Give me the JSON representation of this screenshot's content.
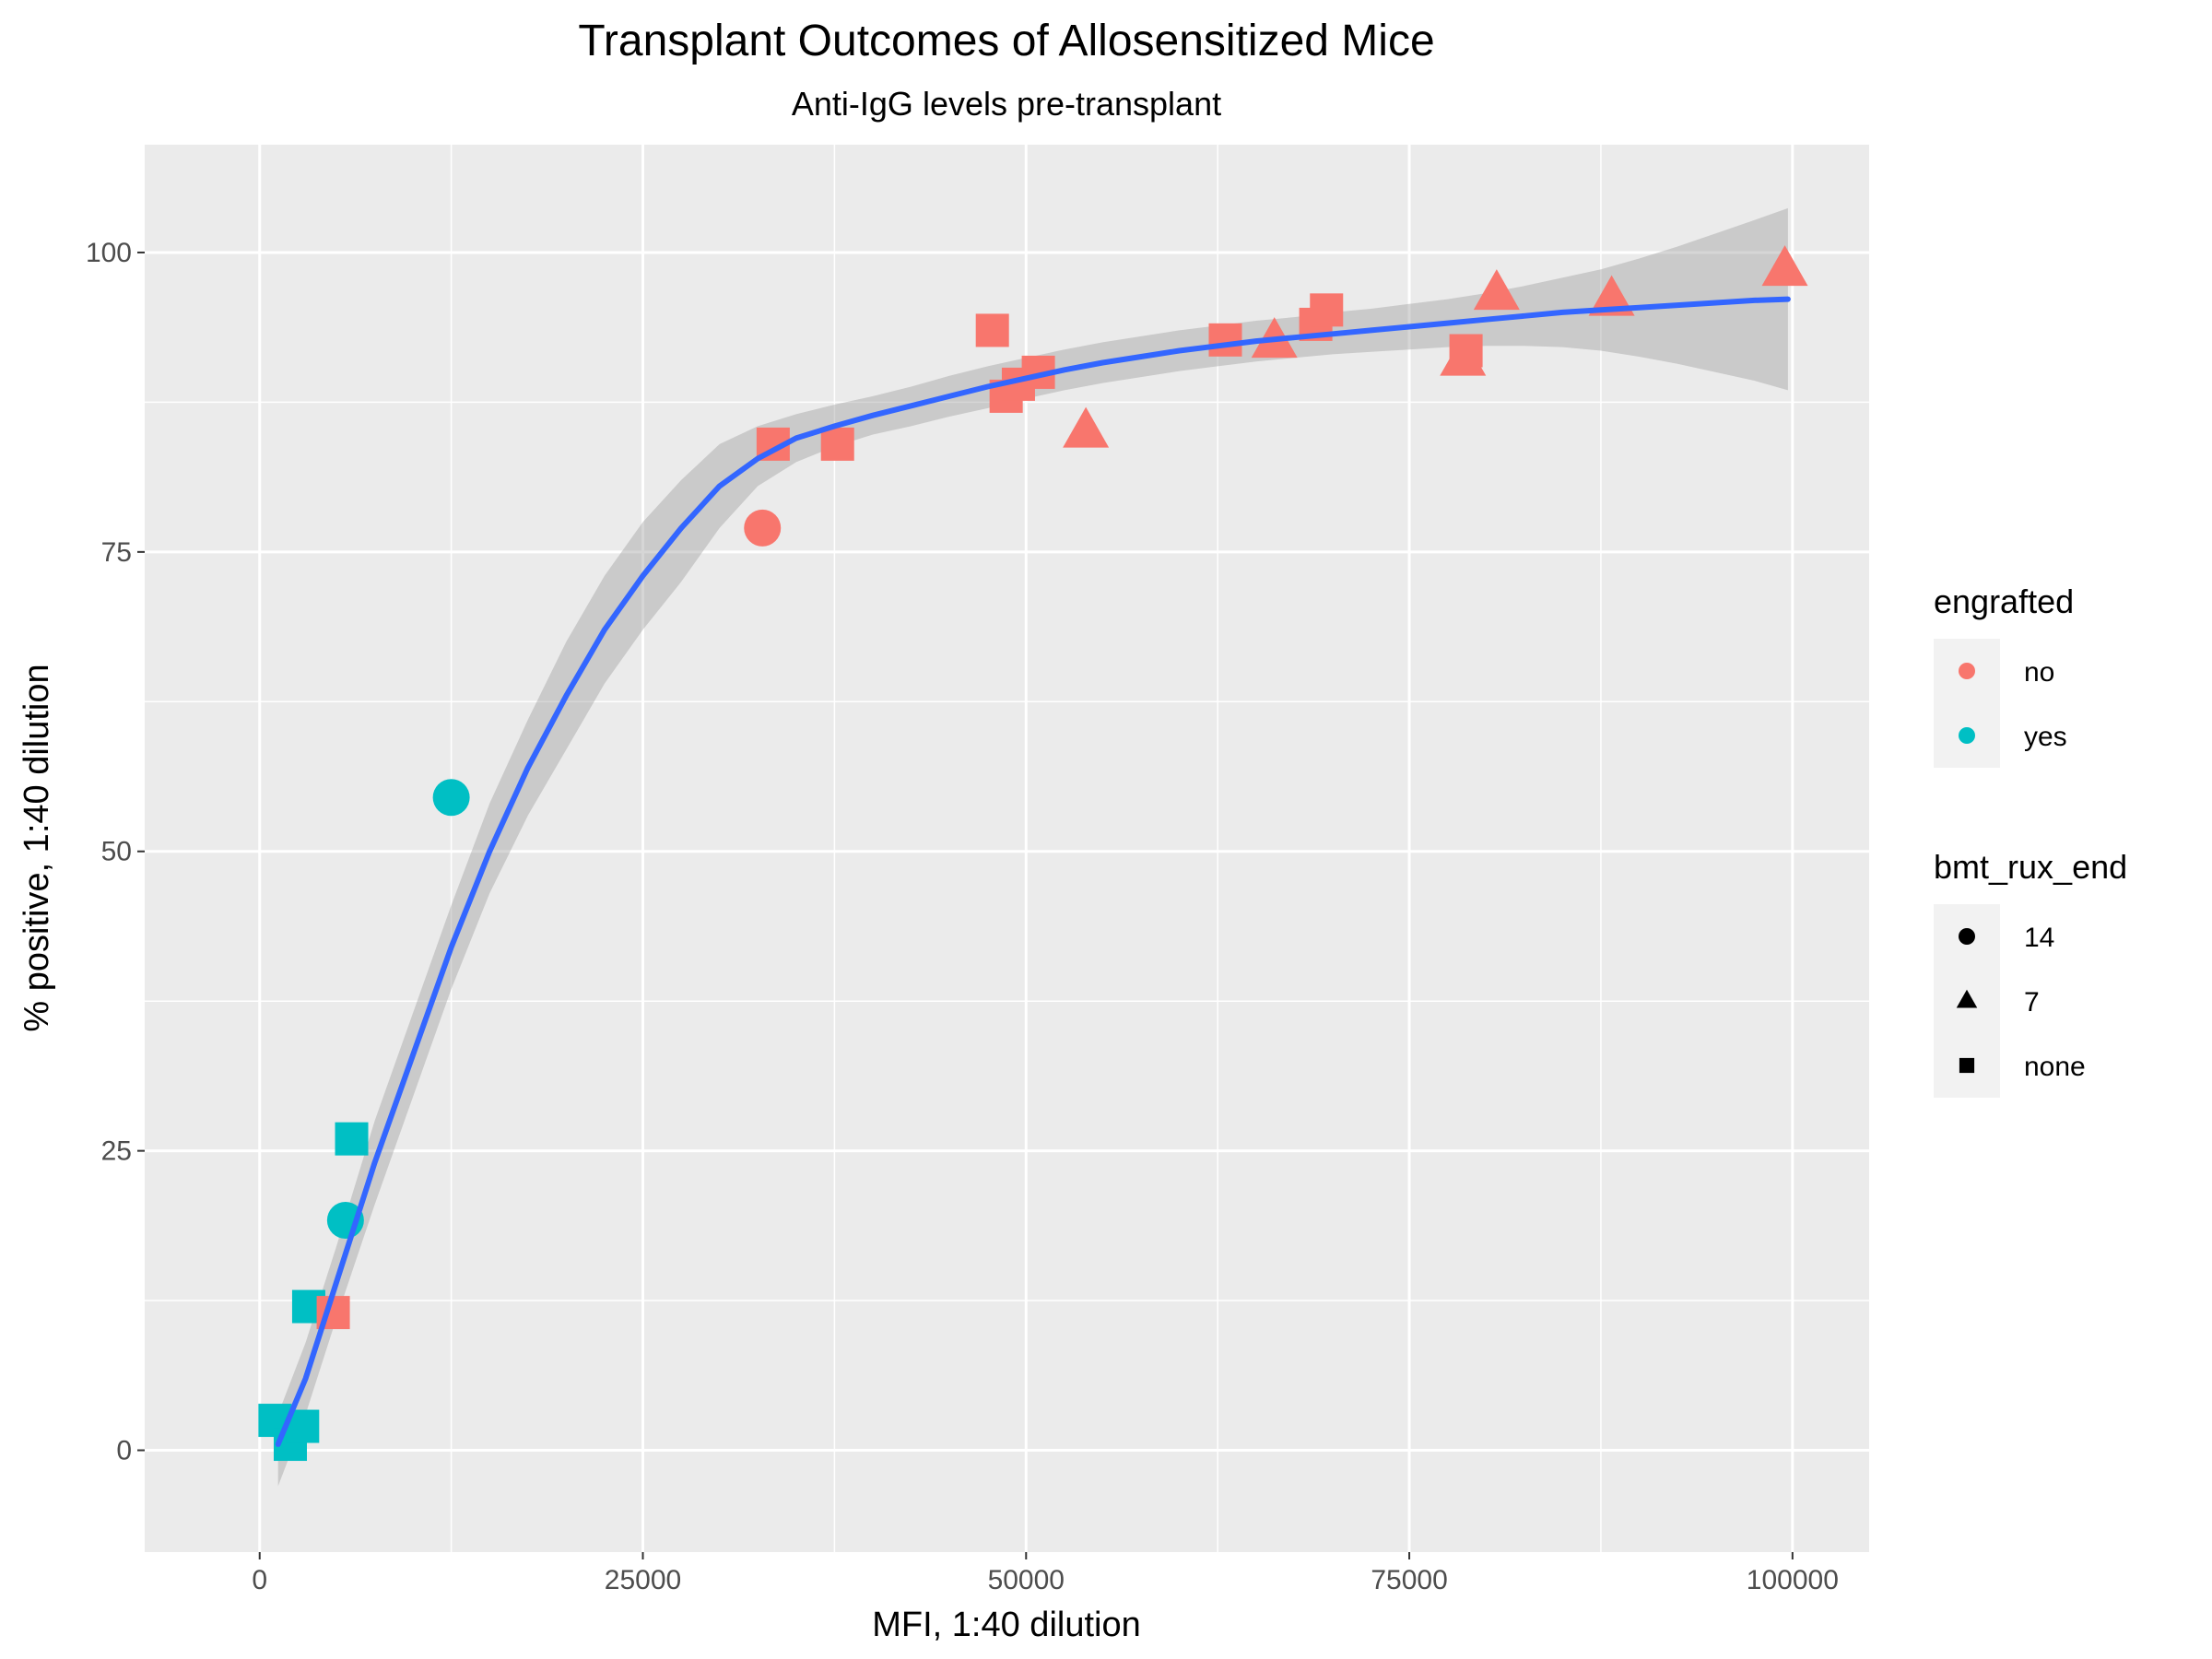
{
  "chart_data": {
    "type": "scatter",
    "title": "Transplant Outcomes of Allosensitized Mice",
    "subtitle": "Anti-IgG levels pre-transplant",
    "xlabel": "MFI, 1:40 dilution",
    "ylabel": "% positive, 1:40 dilution",
    "xlim": [
      -7500,
      105000
    ],
    "ylim": [
      -8.5,
      109
    ],
    "x_ticks": [
      0,
      25000,
      50000,
      75000,
      100000
    ],
    "x_tick_labels": [
      "0",
      "25000",
      "50000",
      "75000",
      "100000"
    ],
    "y_ticks": [
      0,
      25,
      50,
      75,
      100
    ],
    "y_tick_labels": [
      "0",
      "25",
      "50",
      "75",
      "100"
    ],
    "grid": true,
    "legend_position": "right",
    "colors": {
      "no": "#F8766D",
      "yes": "#00BFC4",
      "panel": "#EBEBEB",
      "grid": "#FFFFFF",
      "smooth": "#3366FF",
      "ribbon": "#999999"
    },
    "legends": [
      {
        "title": "engrafted",
        "type": "color",
        "entries": [
          {
            "label": "no",
            "color": "#F8766D"
          },
          {
            "label": "yes",
            "color": "#00BFC4"
          }
        ]
      },
      {
        "title": "bmt_rux_end",
        "type": "shape",
        "entries": [
          {
            "label": "14",
            "shape": "circle"
          },
          {
            "label": "7",
            "shape": "triangle"
          },
          {
            "label": "none",
            "shape": "square"
          }
        ]
      }
    ],
    "points": [
      {
        "x": 1000,
        "y": 2.5,
        "engrafted": "yes",
        "bmt_rux_end": "none"
      },
      {
        "x": 2000,
        "y": 0.5,
        "engrafted": "yes",
        "bmt_rux_end": "none"
      },
      {
        "x": 2800,
        "y": 2,
        "engrafted": "yes",
        "bmt_rux_end": "none"
      },
      {
        "x": 3200,
        "y": 12,
        "engrafted": "yes",
        "bmt_rux_end": "none"
      },
      {
        "x": 4800,
        "y": 11.5,
        "engrafted": "no",
        "bmt_rux_end": "none"
      },
      {
        "x": 5600,
        "y": 19.2,
        "engrafted": "yes",
        "bmt_rux_end": "14"
      },
      {
        "x": 6000,
        "y": 26,
        "engrafted": "yes",
        "bmt_rux_end": "none"
      },
      {
        "x": 12500,
        "y": 54.5,
        "engrafted": "yes",
        "bmt_rux_end": "14"
      },
      {
        "x": 32800,
        "y": 77,
        "engrafted": "no",
        "bmt_rux_end": "14"
      },
      {
        "x": 33500,
        "y": 84,
        "engrafted": "no",
        "bmt_rux_end": "none"
      },
      {
        "x": 37700,
        "y": 84,
        "engrafted": "no",
        "bmt_rux_end": "none"
      },
      {
        "x": 47800,
        "y": 93.5,
        "engrafted": "no",
        "bmt_rux_end": "none"
      },
      {
        "x": 48700,
        "y": 88,
        "engrafted": "no",
        "bmt_rux_end": "none"
      },
      {
        "x": 49500,
        "y": 89,
        "engrafted": "no",
        "bmt_rux_end": "none"
      },
      {
        "x": 50800,
        "y": 90,
        "engrafted": "no",
        "bmt_rux_end": "none"
      },
      {
        "x": 53900,
        "y": 85,
        "engrafted": "no",
        "bmt_rux_end": "7"
      },
      {
        "x": 63000,
        "y": 92.7,
        "engrafted": "no",
        "bmt_rux_end": "none"
      },
      {
        "x": 66200,
        "y": 92.5,
        "engrafted": "no",
        "bmt_rux_end": "7"
      },
      {
        "x": 68900,
        "y": 94,
        "engrafted": "no",
        "bmt_rux_end": "none"
      },
      {
        "x": 69600,
        "y": 95.2,
        "engrafted": "no",
        "bmt_rux_end": "none"
      },
      {
        "x": 78500,
        "y": 91,
        "engrafted": "no",
        "bmt_rux_end": "7"
      },
      {
        "x": 78700,
        "y": 91.8,
        "engrafted": "no",
        "bmt_rux_end": "none"
      },
      {
        "x": 80700,
        "y": 96.5,
        "engrafted": "no",
        "bmt_rux_end": "7"
      },
      {
        "x": 88200,
        "y": 96,
        "engrafted": "no",
        "bmt_rux_end": "7"
      },
      {
        "x": 99500,
        "y": 98.5,
        "engrafted": "no",
        "bmt_rux_end": "7"
      }
    ],
    "smooth": [
      {
        "x": 1200,
        "y": 0.5,
        "lo": -3,
        "hi": 3
      },
      {
        "x": 3000,
        "y": 6,
        "lo": 3,
        "hi": 9
      },
      {
        "x": 5000,
        "y": 14,
        "lo": 11,
        "hi": 17
      },
      {
        "x": 7500,
        "y": 24,
        "lo": 20.5,
        "hi": 27.5
      },
      {
        "x": 10000,
        "y": 33,
        "lo": 29.5,
        "hi": 36.5
      },
      {
        "x": 12500,
        "y": 42,
        "lo": 38.5,
        "hi": 45.5
      },
      {
        "x": 15000,
        "y": 50,
        "lo": 46.5,
        "hi": 54
      },
      {
        "x": 17500,
        "y": 57,
        "lo": 53,
        "hi": 61
      },
      {
        "x": 20000,
        "y": 63,
        "lo": 58.5,
        "hi": 67.5
      },
      {
        "x": 22500,
        "y": 68.5,
        "lo": 64,
        "hi": 73
      },
      {
        "x": 25000,
        "y": 73,
        "lo": 68.5,
        "hi": 77.5
      },
      {
        "x": 27500,
        "y": 77,
        "lo": 72.5,
        "hi": 81
      },
      {
        "x": 30000,
        "y": 80.5,
        "lo": 77,
        "hi": 84
      },
      {
        "x": 32500,
        "y": 82.8,
        "lo": 80.5,
        "hi": 85.5
      },
      {
        "x": 35000,
        "y": 84.5,
        "lo": 82.5,
        "hi": 86.5
      },
      {
        "x": 37500,
        "y": 85.5,
        "lo": 83.8,
        "hi": 87.3
      },
      {
        "x": 40000,
        "y": 86.4,
        "lo": 84.8,
        "hi": 88
      },
      {
        "x": 42500,
        "y": 87.2,
        "lo": 85.5,
        "hi": 88.8
      },
      {
        "x": 45000,
        "y": 88,
        "lo": 86.3,
        "hi": 89.7
      },
      {
        "x": 47500,
        "y": 88.8,
        "lo": 87,
        "hi": 90.5
      },
      {
        "x": 50000,
        "y": 89.5,
        "lo": 87.8,
        "hi": 91.2
      },
      {
        "x": 52500,
        "y": 90.2,
        "lo": 88.5,
        "hi": 91.9
      },
      {
        "x": 55000,
        "y": 90.8,
        "lo": 89.1,
        "hi": 92.5
      },
      {
        "x": 57500,
        "y": 91.3,
        "lo": 89.6,
        "hi": 93
      },
      {
        "x": 60000,
        "y": 91.8,
        "lo": 90.1,
        "hi": 93.5
      },
      {
        "x": 62500,
        "y": 92.2,
        "lo": 90.5,
        "hi": 93.9
      },
      {
        "x": 65000,
        "y": 92.6,
        "lo": 90.9,
        "hi": 94.3
      },
      {
        "x": 67500,
        "y": 92.9,
        "lo": 91.2,
        "hi": 94.6
      },
      {
        "x": 70000,
        "y": 93.2,
        "lo": 91.5,
        "hi": 95
      },
      {
        "x": 72500,
        "y": 93.5,
        "lo": 91.7,
        "hi": 95.3
      },
      {
        "x": 75000,
        "y": 93.8,
        "lo": 91.9,
        "hi": 95.7
      },
      {
        "x": 77500,
        "y": 94.1,
        "lo": 92.1,
        "hi": 96.1
      },
      {
        "x": 80000,
        "y": 94.4,
        "lo": 92.2,
        "hi": 96.6
      },
      {
        "x": 82500,
        "y": 94.7,
        "lo": 92.2,
        "hi": 97.2
      },
      {
        "x": 85000,
        "y": 95,
        "lo": 92.1,
        "hi": 97.9
      },
      {
        "x": 87500,
        "y": 95.2,
        "lo": 91.8,
        "hi": 98.6
      },
      {
        "x": 90000,
        "y": 95.4,
        "lo": 91.3,
        "hi": 99.5
      },
      {
        "x": 92500,
        "y": 95.6,
        "lo": 90.7,
        "hi": 100.5
      },
      {
        "x": 95000,
        "y": 95.8,
        "lo": 90,
        "hi": 101.6
      },
      {
        "x": 97500,
        "y": 96,
        "lo": 89.3,
        "hi": 102.7
      },
      {
        "x": 99700,
        "y": 96.1,
        "lo": 88.5,
        "hi": 103.7
      }
    ]
  }
}
